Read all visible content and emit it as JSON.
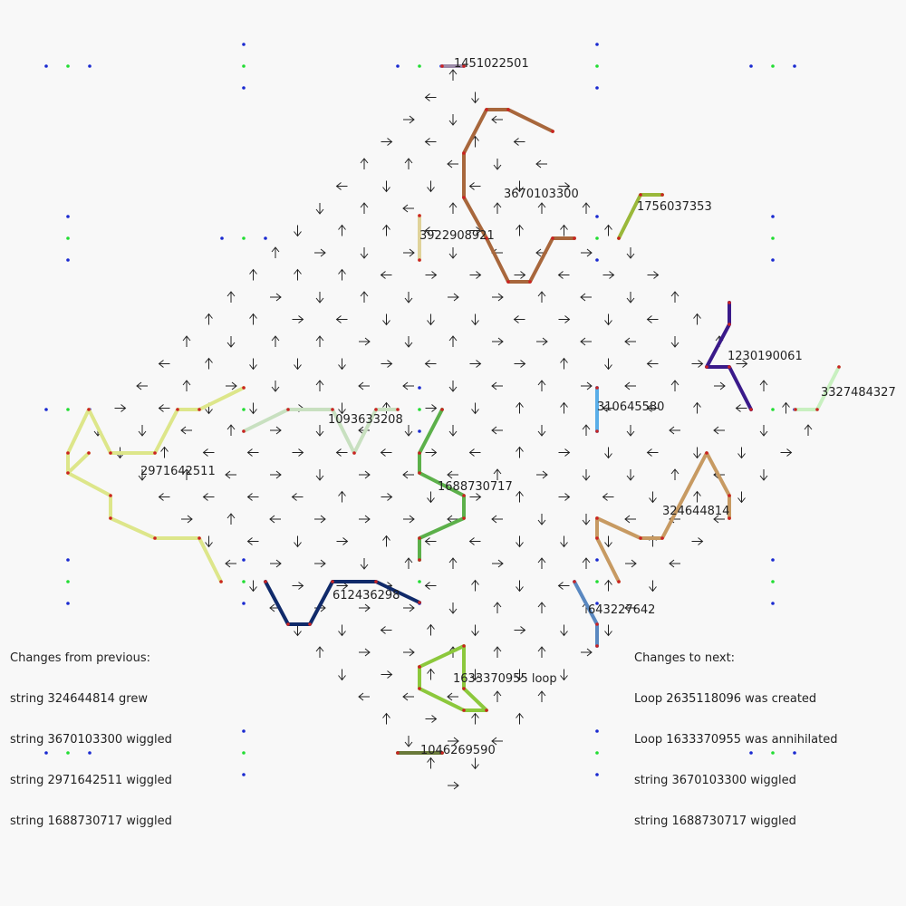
{
  "diagram": {
    "background": "#f8f8f8",
    "colors": {
      "arrow": "#222222",
      "node_red": "#cc2222",
      "marker_blue": "#1a2ad0",
      "marker_green": "#22dd33"
    },
    "strings": [
      {
        "id": "1451022501",
        "label": "1451022501",
        "color": "#9c8aa8"
      },
      {
        "id": "3670103300",
        "label": "3670103300",
        "color": "#a8673c"
      },
      {
        "id": "1756037353",
        "label": "1756037353",
        "color": "#9ab83a"
      },
      {
        "id": "3922908921",
        "label": "3922908921",
        "color": "#e0d39a"
      },
      {
        "id": "1230190061",
        "label": "1230190061",
        "color": "#3a1a8a"
      },
      {
        "id": "3327484327",
        "label": "3327484327",
        "color": "#c8f0c0"
      },
      {
        "id": "310645580",
        "label": "310645580",
        "color": "#5aaee8"
      },
      {
        "id": "1093633208",
        "label": "1093633208",
        "color": "#c8e0c0"
      },
      {
        "id": "2971642511",
        "label": "2971642511",
        "color": "#dde68a"
      },
      {
        "id": "1688730717",
        "label": "1688730717",
        "color": "#5cb04a"
      },
      {
        "id": "324644814",
        "label": "324644814",
        "color": "#c79a62"
      },
      {
        "id": "612436298",
        "label": "612436298",
        "color": "#102a6a"
      },
      {
        "id": "643227642",
        "label": "643227642",
        "color": "#5a88c0"
      },
      {
        "id": "1633370955",
        "label": "1633370955 loop",
        "color": "#8cc83c"
      },
      {
        "id": "1046269590",
        "label": "1046269590",
        "color": "#6a7a3a"
      }
    ]
  },
  "notes": {
    "previous": [
      "Changes from previous:",
      "string 324644814 grew",
      "string 3670103300 wiggled",
      "string 2971642511 wiggled",
      "string 1688730717 wiggled"
    ],
    "next": [
      "Changes to next:",
      "Loop 2635118096 was created",
      "Loop 1633370955 was annihilated",
      "string 3670103300 wiggled",
      "string 1688730717 wiggled"
    ]
  }
}
